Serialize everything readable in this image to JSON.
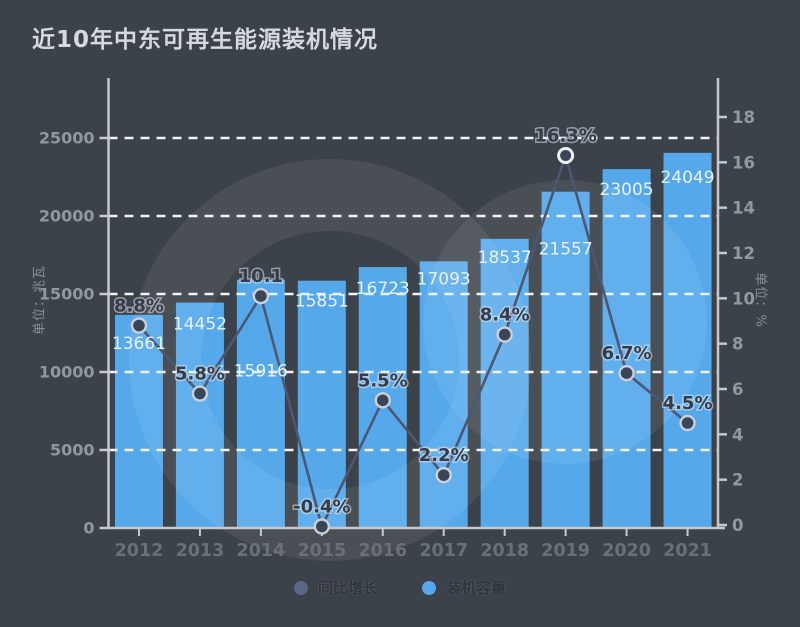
{
  "title": "近10年中东可再生能源装机情况",
  "colors": {
    "background": "#3c4249",
    "bar": "#55a9eb",
    "watermark": "rgba(255,255,255,0.07)",
    "grid": "#f0f1f3",
    "axis": "#c6c8cc",
    "line": "#4d5672",
    "marker_fill": "#3b4559",
    "marker_stroke": "#cbd0d9",
    "bar_label": "#eaf3fc",
    "pct_label": "#363d4a",
    "pct_halo": "rgba(225,230,236,0.55)",
    "tick_label": "#9298a0",
    "year_label": "#6b7077",
    "title_color": "#d5d9de"
  },
  "legend": {
    "items": [
      {
        "label": "同比增长",
        "color": "#5c6687"
      },
      {
        "label": "装机容量",
        "color": "#55a9eb"
      }
    ]
  },
  "chart_data": {
    "type": "bar+line",
    "title": "近10年中东可再生能源装机情况",
    "categories": [
      "2012",
      "2013",
      "2014",
      "2015",
      "2016",
      "2017",
      "2018",
      "2019",
      "2020",
      "2021"
    ],
    "series": [
      {
        "name": "装机容量",
        "type": "bar",
        "axis": "left",
        "values": [
          13661,
          14452,
          15916,
          15851,
          16723,
          17093,
          18537,
          21557,
          23005,
          24049
        ],
        "data_labels": [
          "13661",
          "14452",
          "15916",
          "15851",
          "16723",
          "17093",
          "18537",
          "21557",
          "23005",
          "24049"
        ]
      },
      {
        "name": "同比增长",
        "type": "line",
        "axis": "right",
        "values": [
          8.8,
          5.8,
          10.1,
          -0.4,
          5.5,
          2.2,
          8.4,
          16.3,
          6.7,
          4.5
        ],
        "data_labels": [
          "8.8%",
          "5.8%",
          "10.1",
          "-0.4%",
          "5.5%",
          "2.2%",
          "8.4%",
          "16.3%",
          "6.7%",
          "4.5%"
        ]
      }
    ],
    "left_axis": {
      "name": "单位：兆瓦",
      "min": 0,
      "max": 28800,
      "tick_step": 5000,
      "ticks": [
        "0",
        "5000",
        "10000",
        "15000",
        "20000",
        "25000"
      ]
    },
    "right_axis": {
      "name": "单位：%",
      "min": 0,
      "max": 18,
      "tick_step": 2,
      "ticks": [
        "0",
        "2",
        "4",
        "6",
        "8",
        "10",
        "12",
        "14",
        "16",
        "18"
      ]
    },
    "grid": {
      "horizontal_dashed": true
    },
    "legend_position": "bottom"
  }
}
